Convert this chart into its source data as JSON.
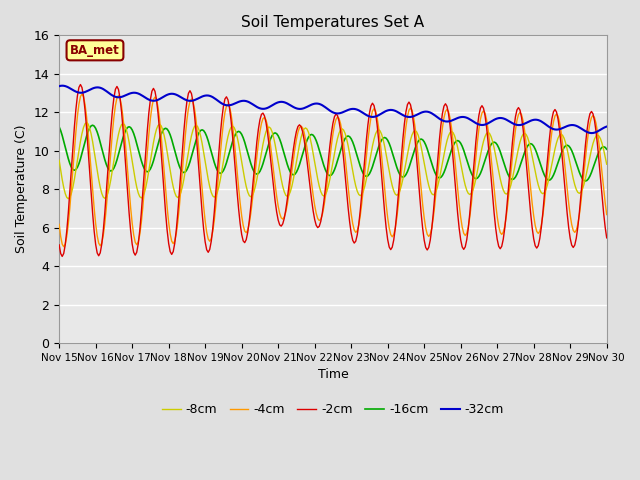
{
  "title": "Soil Temperatures Set A",
  "xlabel": "Time",
  "ylabel": "Soil Temperature (C)",
  "ylim": [
    0,
    16
  ],
  "bg_color": "#e8e8e8",
  "grid_color": "#ffffff",
  "fig_bg_color": "#e0e0e0",
  "xtick_labels": [
    "Nov 15",
    "Nov 16",
    "Nov 17",
    "Nov 18",
    "Nov 19",
    "Nov 20",
    "Nov 21",
    "Nov 22",
    "Nov 23",
    "Nov 24",
    "Nov 25",
    "Nov 26",
    "Nov 27",
    "Nov 28",
    "Nov 29",
    "Nov 30"
  ],
  "legend_labels": [
    "-2cm",
    "-4cm",
    "-8cm",
    "-16cm",
    "-32cm"
  ],
  "legend_colors": [
    "#dd0000",
    "#ff9900",
    "#cccc00",
    "#00aa00",
    "#0000cc"
  ],
  "annotation_text": "BA_met",
  "annotation_bg": "#ffff99",
  "annotation_border": "#880000"
}
